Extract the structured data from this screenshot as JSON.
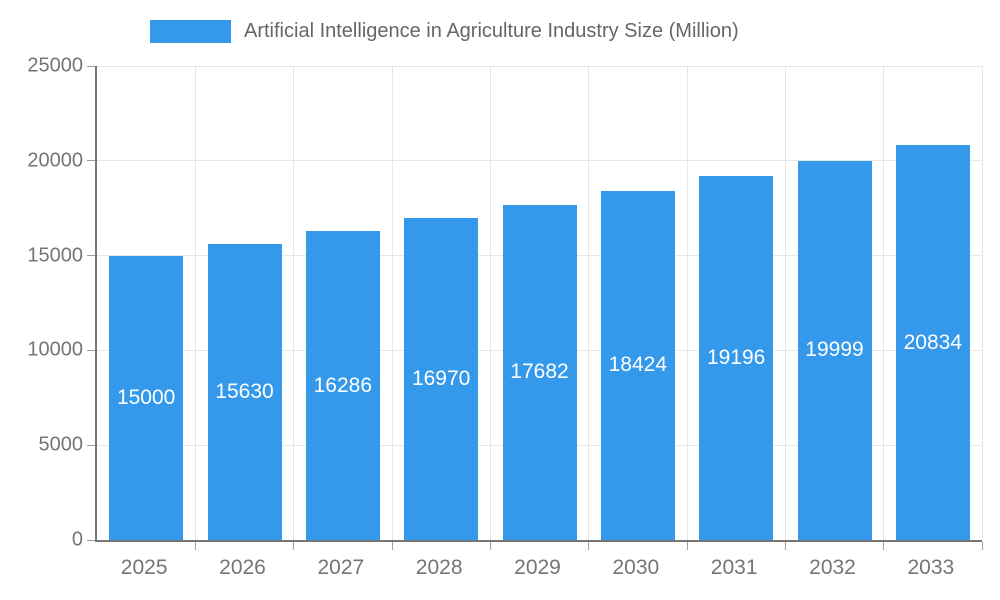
{
  "chart_data": {
    "type": "bar",
    "title": "Artificial Intelligence in Agriculture Industry Size (Million)",
    "categories": [
      "2025",
      "2026",
      "2027",
      "2028",
      "2029",
      "2030",
      "2031",
      "2032",
      "2033"
    ],
    "values": [
      15000,
      15630,
      16286,
      16970,
      17682,
      18424,
      19196,
      19999,
      20834
    ],
    "xlabel": "",
    "ylabel": "",
    "ylim": [
      0,
      25000
    ],
    "yticks": [
      0,
      5000,
      10000,
      15000,
      20000,
      25000
    ],
    "grid": true,
    "legend_position": "top",
    "bar_color": "#3498EB",
    "value_label_color": "#ffffff",
    "axis_text_color": "#757575",
    "title_color": "#666666"
  }
}
